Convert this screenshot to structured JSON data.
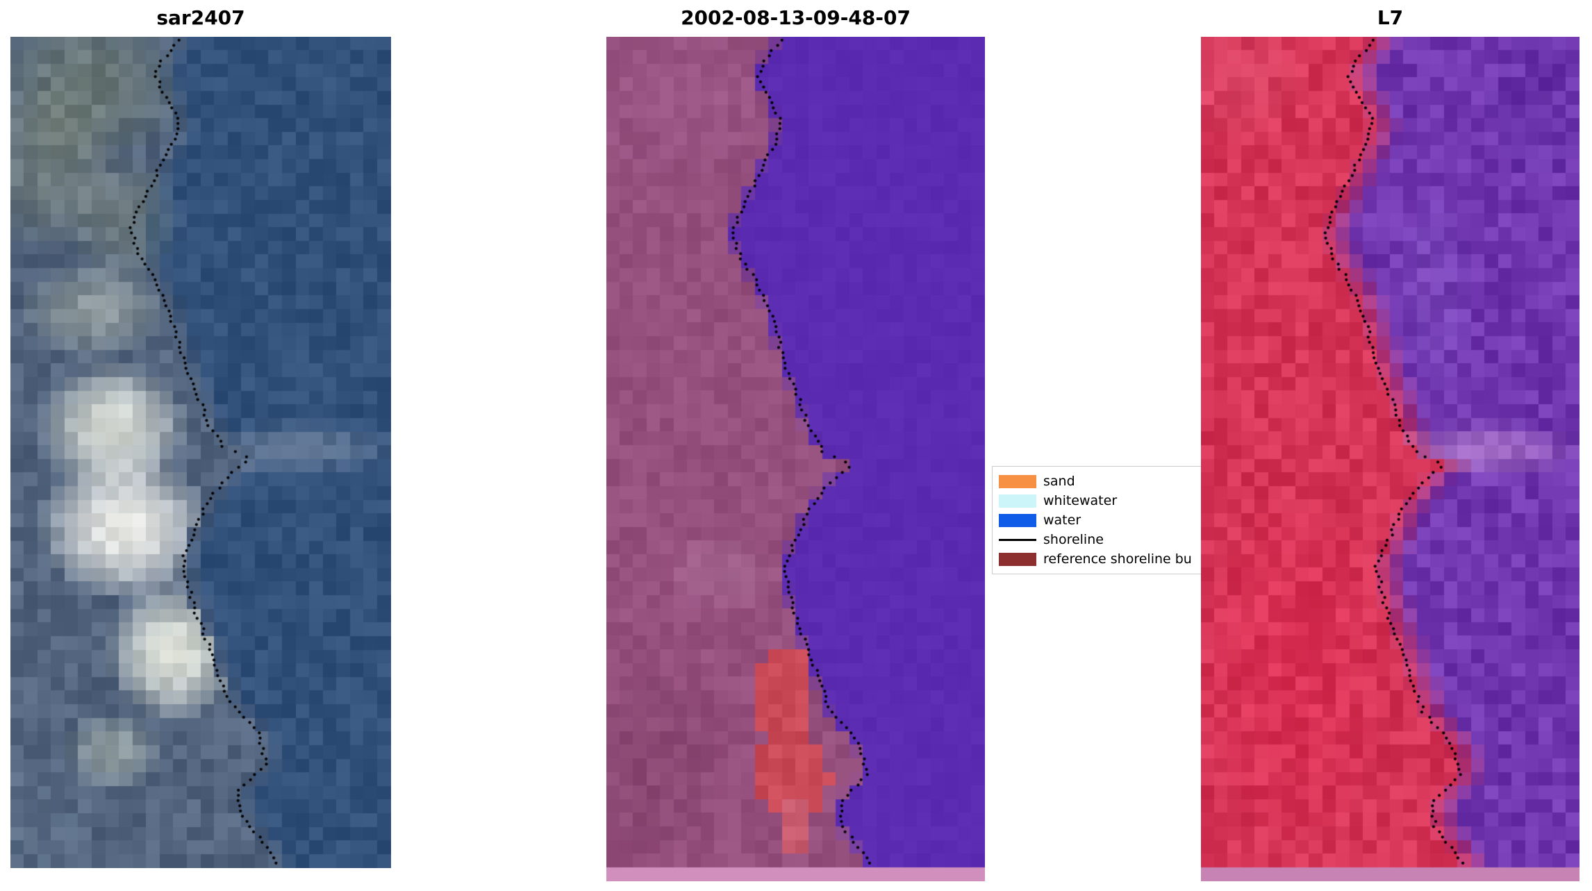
{
  "figure": {
    "background": "#ffffff"
  },
  "chart_data": {
    "type": "heatmap",
    "description": "Three-panel coastal satellite figure: SAR image, classified optical image and Landsat-7 false-color image, each overlaid with a dotted detected shoreline.",
    "panels": [
      {
        "title": "sar2407",
        "kind": "sar-rgb-image",
        "seed": 11,
        "cols": 28,
        "rows": 61,
        "left_base": "#52647e",
        "right_base": "#31507a",
        "left_noise": 16,
        "right_noise": 12,
        "band": 0.05,
        "dot_offset": 0.0,
        "bottom_strip": null,
        "strip_h": 0,
        "blobs": [
          {
            "u": 0.2,
            "v": 0.06,
            "ru": 0.26,
            "rv": 0.1,
            "color": "#7f8a72",
            "s": 0.55
          },
          {
            "u": 0.1,
            "v": 0.16,
            "ru": 0.18,
            "rv": 0.1,
            "color": "#8d947a",
            "s": 0.45
          },
          {
            "u": 0.3,
            "v": 0.22,
            "ru": 0.16,
            "rv": 0.08,
            "color": "#9aa287",
            "s": 0.4
          },
          {
            "u": 0.22,
            "v": 0.33,
            "ru": 0.2,
            "rv": 0.06,
            "color": "#c6cbb8",
            "s": 0.5,
            "side": "left"
          },
          {
            "u": 0.27,
            "v": 0.47,
            "ru": 0.2,
            "rv": 0.08,
            "color": "#edefe3",
            "s": 0.85,
            "side": "left"
          },
          {
            "u": 0.3,
            "v": 0.59,
            "ru": 0.23,
            "rv": 0.09,
            "color": "#f6f5ee",
            "s": 0.92,
            "side": "left"
          },
          {
            "u": 0.43,
            "v": 0.74,
            "ru": 0.18,
            "rv": 0.085,
            "color": "#eef0e2",
            "s": 0.88,
            "side": "left"
          },
          {
            "u": 0.27,
            "v": 0.86,
            "ru": 0.13,
            "rv": 0.05,
            "color": "#ccd3c0",
            "s": 0.5,
            "side": "left"
          },
          {
            "u": 0.75,
            "v": 0.495,
            "ru": 0.28,
            "rv": 0.032,
            "color": "#8a97aa",
            "s": 0.55,
            "side": "right"
          },
          {
            "u": 0.06,
            "v": 0.94,
            "ru": 0.18,
            "rv": 0.07,
            "color": "#6b7e94",
            "s": 0.35
          }
        ]
      },
      {
        "title": "2002-08-13-09-48-07",
        "kind": "classified-image",
        "seed": 22,
        "cols": 28,
        "rows": 62,
        "left_base": "#96507e",
        "right_base": "#5b2cb2",
        "left_noise": 10,
        "right_noise": 4,
        "band": 0.02,
        "dot_offset": 0.018,
        "bottom_strip": "#d08fbc",
        "strip_h": 20,
        "blobs": [
          {
            "u": 0.22,
            "v": 0.07,
            "ru": 0.3,
            "rv": 0.1,
            "color": "#a35d8f",
            "s": 0.4,
            "side": "left"
          },
          {
            "u": 0.12,
            "v": 0.86,
            "ru": 0.22,
            "rv": 0.13,
            "color": "#7e4067",
            "s": 0.5,
            "side": "left"
          },
          {
            "u": 0.3,
            "v": 0.635,
            "ru": 0.16,
            "rv": 0.05,
            "color": "#b077a0",
            "s": 0.45,
            "side": "left"
          },
          {
            "u": 0.47,
            "v": 0.78,
            "ru": 0.075,
            "rv": 0.062,
            "color": "#ca4a57",
            "s": 1,
            "hard": true,
            "side": "left"
          },
          {
            "u": 0.49,
            "v": 0.875,
            "ru": 0.1,
            "rv": 0.055,
            "color": "#ca4a57",
            "s": 1,
            "hard": true,
            "side": "left"
          },
          {
            "u": 0.5,
            "v": 0.935,
            "ru": 0.045,
            "rv": 0.028,
            "color": "#c85a6e",
            "s": 1,
            "hard": true,
            "side": "left"
          }
        ]
      },
      {
        "title": "L7",
        "kind": "landsat7-false-color-image",
        "seed": 33,
        "cols": 28,
        "rows": 62,
        "left_base": "#d63456",
        "right_base": "#6f36b0",
        "left_noise": 16,
        "right_noise": 18,
        "band": 0.09,
        "dot_offset": 0.012,
        "bottom_strip": "#c783b4",
        "strip_h": 20,
        "blobs": [
          {
            "u": 0.1,
            "v": 0.05,
            "ru": 0.2,
            "rv": 0.08,
            "color": "#dd5a78",
            "s": 0.35,
            "side": "left"
          },
          {
            "u": 0.75,
            "v": 0.49,
            "ru": 0.28,
            "rv": 0.035,
            "color": "#bb87cc",
            "s": 0.6,
            "side": "right"
          },
          {
            "u": 0.9,
            "v": 0.08,
            "ru": 0.15,
            "rv": 0.1,
            "color": "#5e2a9e",
            "s": 0.4,
            "side": "right"
          },
          {
            "u": 0.62,
            "v": 0.3,
            "ru": 0.1,
            "rv": 0.12,
            "color": "#8a5cc4",
            "s": 0.35,
            "side": "right"
          },
          {
            "u": 0.25,
            "v": 0.75,
            "ru": 0.25,
            "rv": 0.2,
            "color": "#e02a52",
            "s": 0.35,
            "side": "left"
          }
        ]
      }
    ],
    "shoreline": {
      "color": "#000000",
      "dot_radius": 2.1,
      "dot_spacing": 7.5,
      "points": [
        [
          0.005,
          0.442
        ],
        [
          0.029,
          0.397
        ],
        [
          0.047,
          0.38
        ],
        [
          0.071,
          0.408
        ],
        [
          0.101,
          0.442
        ],
        [
          0.125,
          0.43
        ],
        [
          0.149,
          0.4
        ],
        [
          0.179,
          0.368
        ],
        [
          0.203,
          0.34
        ],
        [
          0.231,
          0.315
        ],
        [
          0.26,
          0.336
        ],
        [
          0.29,
          0.378
        ],
        [
          0.32,
          0.41
        ],
        [
          0.353,
          0.432
        ],
        [
          0.392,
          0.458
        ],
        [
          0.431,
          0.492
        ],
        [
          0.464,
          0.518
        ],
        [
          0.494,
          0.56
        ],
        [
          0.507,
          0.635
        ],
        [
          0.524,
          0.58
        ],
        [
          0.558,
          0.518
        ],
        [
          0.594,
          0.486
        ],
        [
          0.625,
          0.452
        ],
        [
          0.656,
          0.465
        ],
        [
          0.692,
          0.486
        ],
        [
          0.728,
          0.518
        ],
        [
          0.764,
          0.545
        ],
        [
          0.8,
          0.576
        ],
        [
          0.837,
          0.65
        ],
        [
          0.873,
          0.672
        ],
        [
          0.906,
          0.6
        ],
        [
          0.936,
          0.606
        ],
        [
          0.969,
          0.666
        ],
        [
          0.993,
          0.694
        ]
      ]
    },
    "legend": {
      "background": "#ffffff",
      "border": "#cccccc",
      "items": [
        {
          "label": "sand",
          "type": "patch",
          "color": "#f79043"
        },
        {
          "label": "whitewater",
          "type": "patch",
          "color": "#ccf5f9"
        },
        {
          "label": "water",
          "type": "patch",
          "color": "#0f5ce8"
        },
        {
          "label": "shoreline",
          "type": "line",
          "color": "#000000"
        },
        {
          "label": "reference shoreline bu",
          "type": "patch",
          "color": "#8e2f2f"
        }
      ]
    }
  }
}
